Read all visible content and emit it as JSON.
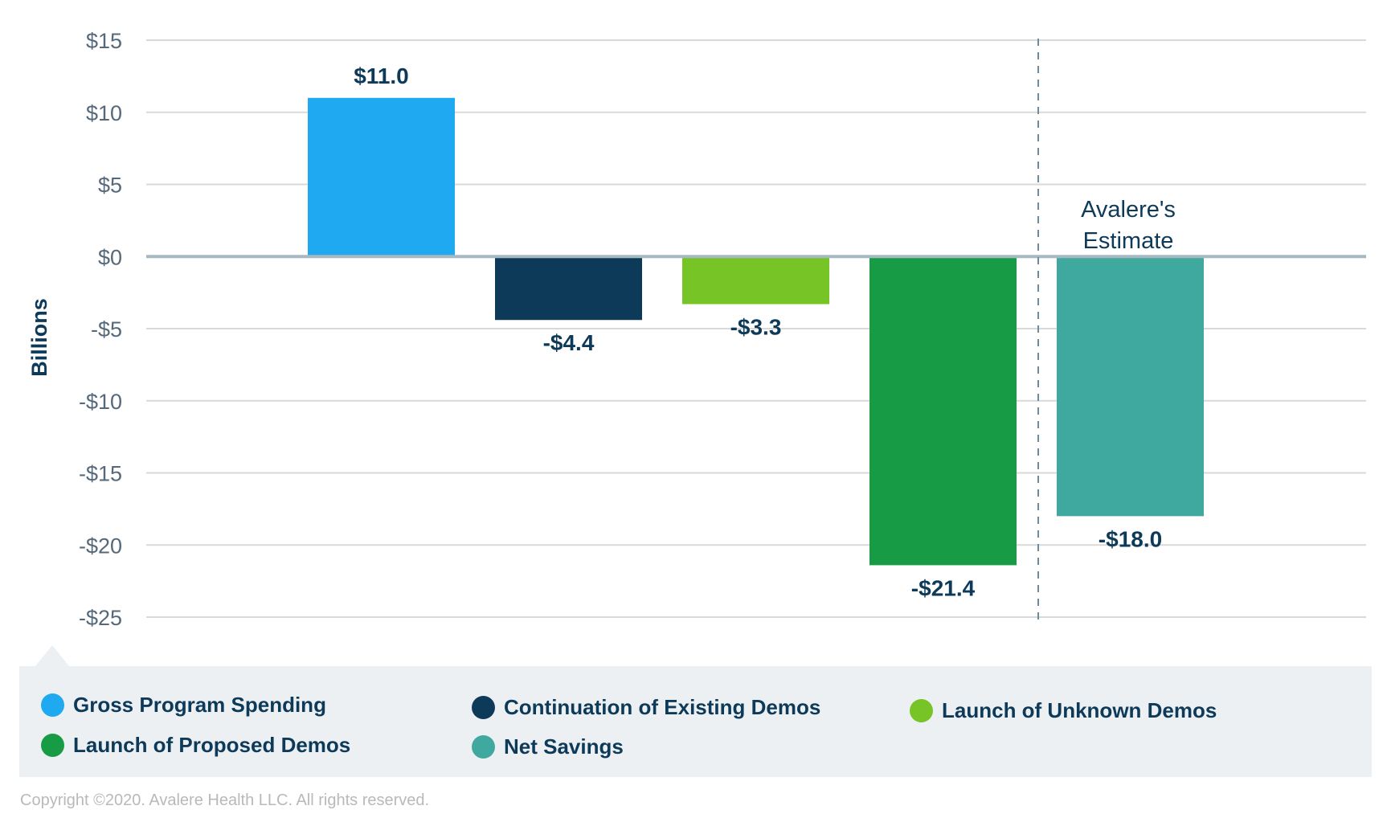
{
  "chart_data": {
    "type": "bar",
    "ylabel": "Billions",
    "ylim": [
      -25,
      15
    ],
    "yticks": [
      15,
      10,
      5,
      0,
      -5,
      -10,
      -15,
      -20,
      -25
    ],
    "ytick_labels": [
      "$15",
      "$10",
      "$5",
      "$0",
      "-$5",
      "-$10",
      "-$15",
      "-$20",
      "-$25"
    ],
    "grid": true,
    "categories": [
      "Gross Program Spending",
      "Continuation of Existing Demos",
      "Launch of Unknown Demos",
      "Launch of Proposed Demos",
      "Net Savings"
    ],
    "values": [
      11.0,
      -4.4,
      -3.3,
      -21.4,
      -18.0
    ],
    "data_labels": [
      "$11.0",
      "-$4.4",
      "-$3.3",
      "-$21.4",
      "-$18.0"
    ],
    "colors": [
      "#1fa9f0",
      "#0e3a5a",
      "#76c425",
      "#179b44",
      "#3fa9a0"
    ],
    "annotation": {
      "line1": "Avalere's",
      "line2": "Estimate"
    },
    "divider": "dashed vertical line before Net Savings",
    "legend_position": "bottom"
  },
  "legend": [
    {
      "label": "Gross Program Spending",
      "color": "#1fa9f0"
    },
    {
      "label": "Continuation of Existing Demos",
      "color": "#0e3a5a"
    },
    {
      "label": "Launch of Unknown Demos",
      "color": "#76c425"
    },
    {
      "label": "Launch of Proposed Demos",
      "color": "#179b44"
    },
    {
      "label": "Net Savings",
      "color": "#3fa9a0"
    }
  ],
  "footer": {
    "copyright": "Copyright ©2020. Avalere Health LLC. All rights reserved."
  }
}
